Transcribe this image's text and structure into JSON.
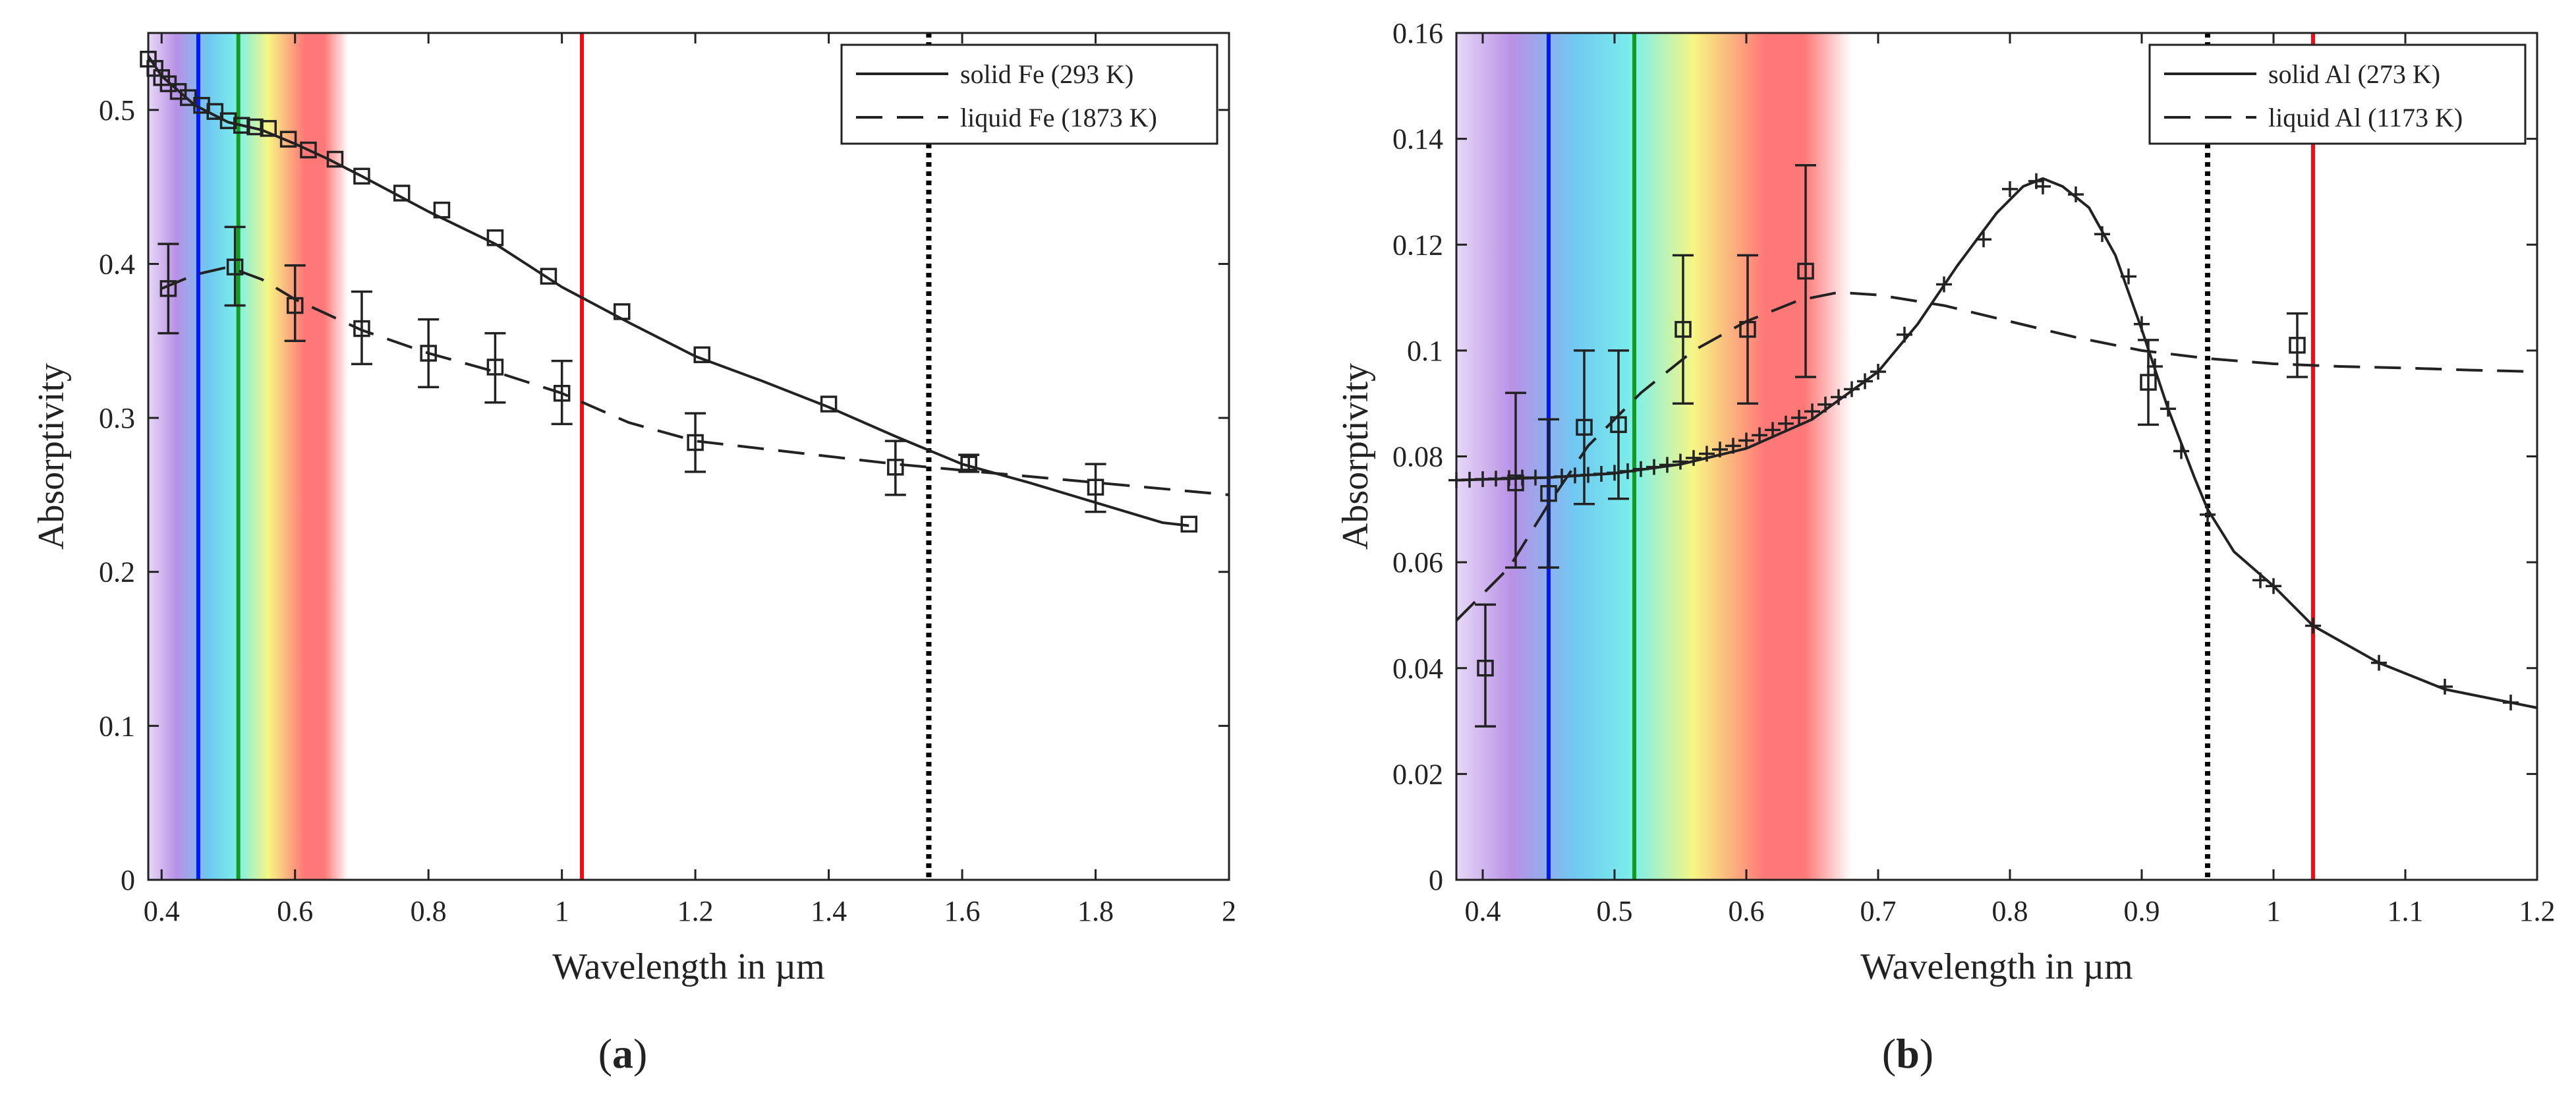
{
  "page": {
    "background": "#ffffff",
    "ink": "#222222"
  },
  "legend_style": {
    "solid_dash": "",
    "liquid_dash": "40,22",
    "marker_a": "square",
    "marker_b": "plus"
  },
  "spectrum_colors": [
    "#b991e6",
    "#6fc8f2",
    "#7cf0ea",
    "#f6f684",
    "#ff7878"
  ],
  "line_colors": {
    "blue": "#0018ff",
    "green": "#169c1c",
    "red": "#f50c12",
    "dotted": "#000000"
  },
  "chart_data": [
    {
      "type": "line",
      "panel_label": "(a)",
      "panel_letter": "a",
      "xlabel": "Wavelength in µm",
      "ylabel": "Absorptivity",
      "xlim": [
        0.38,
        2.0
      ],
      "ylim": [
        0,
        0.55
      ],
      "xticks": [
        0.4,
        0.6,
        0.8,
        1,
        1.2,
        1.4,
        1.6,
        1.8,
        2
      ],
      "xtick_labels": [
        "0.4",
        "0.6",
        "0.8",
        "1",
        "1.2",
        "1.4",
        "1.6",
        "1.8",
        "2"
      ],
      "yticks": [
        0,
        0.1,
        0.2,
        0.3,
        0.4,
        0.5
      ],
      "ytick_labels": [
        "0",
        "0.1",
        "0.2",
        "0.3",
        "0.4",
        "0.5"
      ],
      "spectrum_band": [
        0.38,
        0.68
      ],
      "vlines": [
        {
          "x": 0.455,
          "color": "blue",
          "style": "solid"
        },
        {
          "x": 0.515,
          "color": "green",
          "style": "solid"
        },
        {
          "x": 1.03,
          "color": "red",
          "style": "solid"
        },
        {
          "x": 1.55,
          "color": "dotted",
          "style": "dotted"
        }
      ],
      "legend": {
        "position": "top-right",
        "entries": [
          "solid Fe (293 K)",
          "liquid Fe (1873 K)"
        ]
      },
      "series": [
        {
          "name": "solid Fe (293 K)",
          "style": "solid",
          "curve_x": [
            0.38,
            0.4,
            0.45,
            0.5,
            0.55,
            0.6,
            0.65,
            0.7,
            0.8,
            0.9,
            1.0,
            1.1,
            1.2,
            1.3,
            1.4,
            1.5,
            1.6,
            1.7,
            1.8,
            1.9,
            1.94
          ],
          "curve_y": [
            0.535,
            0.522,
            0.503,
            0.492,
            0.487,
            0.478,
            0.468,
            0.457,
            0.434,
            0.413,
            0.385,
            0.362,
            0.34,
            0.324,
            0.307,
            0.288,
            0.27,
            0.258,
            0.245,
            0.232,
            0.23
          ],
          "markers_x": [
            0.38,
            0.39,
            0.4,
            0.41,
            0.425,
            0.44,
            0.46,
            0.48,
            0.5,
            0.52,
            0.54,
            0.56,
            0.59,
            0.62,
            0.66,
            0.7,
            0.76,
            0.82,
            0.9,
            0.98,
            1.09,
            1.21,
            1.4,
            1.61,
            1.94
          ],
          "markers_y": [
            0.533,
            0.527,
            0.521,
            0.517,
            0.512,
            0.508,
            0.503,
            0.499,
            0.493,
            0.49,
            0.489,
            0.488,
            0.481,
            0.474,
            0.468,
            0.457,
            0.446,
            0.435,
            0.417,
            0.392,
            0.369,
            0.341,
            0.309,
            0.271,
            0.231
          ],
          "err_x": [],
          "err_lo": [],
          "err_hi": []
        },
        {
          "name": "liquid Fe (1873 K)",
          "style": "dashed",
          "curve_x": [
            0.4,
            0.45,
            0.5,
            0.55,
            0.6,
            0.7,
            0.8,
            0.9,
            1.0,
            1.1,
            1.2,
            1.3,
            1.4,
            1.5,
            1.6,
            1.7,
            1.8,
            1.9,
            2.0
          ],
          "curve_y": [
            0.384,
            0.393,
            0.398,
            0.39,
            0.377,
            0.357,
            0.342,
            0.33,
            0.316,
            0.297,
            0.285,
            0.28,
            0.275,
            0.27,
            0.266,
            0.262,
            0.258,
            0.254,
            0.25
          ],
          "markers_x": [
            0.41,
            0.51,
            0.6,
            0.7,
            0.8,
            0.9,
            1.0,
            1.2,
            1.5,
            1.61,
            1.8
          ],
          "markers_y": [
            0.384,
            0.398,
            0.373,
            0.358,
            0.342,
            0.333,
            0.316,
            0.284,
            0.268,
            0.27,
            0.255
          ],
          "err_x": [
            0.41,
            0.51,
            0.6,
            0.7,
            0.8,
            0.9,
            1.0,
            1.2,
            1.5,
            1.61,
            1.8
          ],
          "err_lo": [
            0.355,
            0.373,
            0.35,
            0.335,
            0.32,
            0.31,
            0.296,
            0.265,
            0.25,
            0.265,
            0.239
          ],
          "err_hi": [
            0.413,
            0.424,
            0.399,
            0.382,
            0.364,
            0.355,
            0.337,
            0.303,
            0.285,
            0.276,
            0.27
          ]
        }
      ]
    },
    {
      "type": "line",
      "panel_label": "(b)",
      "panel_letter": "b",
      "xlabel": "Wavelength in µm",
      "ylabel": "Absorptivity",
      "xlim": [
        0.38,
        1.2
      ],
      "ylim": [
        0,
        0.16
      ],
      "xticks": [
        0.4,
        0.5,
        0.6,
        0.7,
        0.8,
        0.9,
        1,
        1.1,
        1.2
      ],
      "xtick_labels": [
        "0.4",
        "0.5",
        "0.6",
        "0.7",
        "0.8",
        "0.9",
        "1",
        "1.1",
        "1.2"
      ],
      "yticks": [
        0,
        0.02,
        0.04,
        0.06,
        0.08,
        0.1,
        0.12,
        0.14,
        0.16
      ],
      "ytick_labels": [
        "0",
        "0.02",
        "0.04",
        "0.06",
        "0.08",
        "0.1",
        "0.12",
        "0.14",
        "0.16"
      ],
      "spectrum_band": [
        0.38,
        0.68
      ],
      "vlines": [
        {
          "x": 0.45,
          "color": "blue",
          "style": "solid"
        },
        {
          "x": 0.515,
          "color": "green",
          "style": "solid"
        },
        {
          "x": 1.03,
          "color": "red",
          "style": "solid"
        },
        {
          "x": 0.95,
          "color": "dotted",
          "style": "dotted"
        }
      ],
      "legend": {
        "position": "top-right",
        "entries": [
          "solid Al (273 K)",
          "liquid Al (1173 K)"
        ]
      },
      "series": [
        {
          "name": "solid Al (273 K)",
          "style": "solid",
          "curve_x": [
            0.38,
            0.45,
            0.5,
            0.55,
            0.6,
            0.65,
            0.7,
            0.73,
            0.76,
            0.79,
            0.81,
            0.825,
            0.84,
            0.86,
            0.88,
            0.9,
            0.92,
            0.94,
            0.95,
            0.97,
            1.0,
            1.03,
            1.08,
            1.13,
            1.2
          ],
          "curve_y": [
            0.0755,
            0.076,
            0.0768,
            0.0785,
            0.0815,
            0.087,
            0.096,
            0.105,
            0.116,
            0.126,
            0.131,
            0.1325,
            0.131,
            0.127,
            0.118,
            0.104,
            0.089,
            0.076,
            0.07,
            0.062,
            0.0555,
            0.048,
            0.041,
            0.036,
            0.0325
          ],
          "markers_x": [
            0.38,
            0.39,
            0.4,
            0.41,
            0.42,
            0.43,
            0.44,
            0.46,
            0.47,
            0.48,
            0.49,
            0.5,
            0.51,
            0.52,
            0.53,
            0.54,
            0.55,
            0.56,
            0.57,
            0.58,
            0.59,
            0.6,
            0.61,
            0.62,
            0.63,
            0.64,
            0.65,
            0.66,
            0.67,
            0.68,
            0.69,
            0.7,
            0.72,
            0.75,
            0.78,
            0.8,
            0.82,
            0.825,
            0.85,
            0.87,
            0.89,
            0.9,
            0.91,
            0.92,
            0.93,
            0.95,
            0.99,
            1.0,
            1.03,
            1.08,
            1.13,
            1.18
          ],
          "markers_y": [
            0.0755,
            0.0756,
            0.0757,
            0.0758,
            0.0759,
            0.076,
            0.076,
            0.0762,
            0.0764,
            0.0765,
            0.0767,
            0.0769,
            0.0772,
            0.0776,
            0.078,
            0.0784,
            0.079,
            0.0797,
            0.0805,
            0.0813,
            0.082,
            0.083,
            0.084,
            0.085,
            0.0862,
            0.0873,
            0.0885,
            0.0898,
            0.0912,
            0.0927,
            0.0942,
            0.096,
            0.103,
            0.1125,
            0.121,
            0.1305,
            0.132,
            0.131,
            0.1295,
            0.122,
            0.114,
            0.105,
            0.097,
            0.089,
            0.081,
            0.069,
            0.0566,
            0.0555,
            0.048,
            0.041,
            0.0365,
            0.0335
          ],
          "err_x": [],
          "err_lo": [],
          "err_hi": []
        },
        {
          "name": "liquid Al (1173 K)",
          "style": "dashed",
          "curve_x": [
            0.38,
            0.42,
            0.45,
            0.48,
            0.52,
            0.56,
            0.6,
            0.64,
            0.67,
            0.7,
            0.75,
            0.8,
            0.85,
            0.9,
            0.95,
            1.0,
            1.05,
            1.1,
            1.15,
            1.2
          ],
          "curve_y": [
            0.049,
            0.059,
            0.071,
            0.082,
            0.092,
            0.1,
            0.1055,
            0.1095,
            0.111,
            0.1105,
            0.1085,
            0.1055,
            0.1025,
            0.1,
            0.0985,
            0.0975,
            0.097,
            0.0967,
            0.0963,
            0.096
          ],
          "markers_x": [
            0.402,
            0.425,
            0.45,
            0.477,
            0.503,
            0.552,
            0.601,
            0.645,
            0.905,
            1.018
          ],
          "markers_y": [
            0.04,
            0.075,
            0.073,
            0.0855,
            0.086,
            0.104,
            0.104,
            0.115,
            0.094,
            0.101
          ],
          "err_x": [
            0.402,
            0.425,
            0.45,
            0.477,
            0.503,
            0.552,
            0.601,
            0.645,
            0.905,
            1.018
          ],
          "err_lo": [
            0.029,
            0.059,
            0.059,
            0.071,
            0.072,
            0.09,
            0.09,
            0.095,
            0.086,
            0.095
          ],
          "err_hi": [
            0.052,
            0.092,
            0.087,
            0.1,
            0.1,
            0.118,
            0.118,
            0.135,
            0.102,
            0.107
          ]
        }
      ]
    }
  ]
}
